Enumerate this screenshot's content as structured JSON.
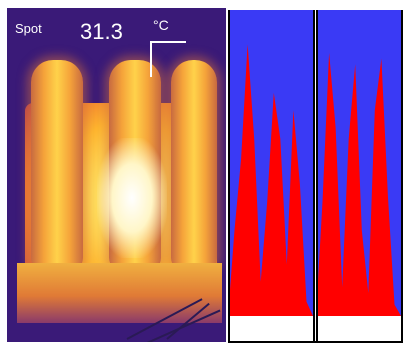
{
  "overlay": {
    "spot_label": "Spot",
    "spot_value": "31.3",
    "unit": "°C"
  },
  "colors": {
    "strip_background": "#3a3af5",
    "strip_fill": "#ff0000",
    "thermal_background": "#3a1a78"
  },
  "icons": {
    "measurement_marker": "crosshair-bracket-icon"
  },
  "profiles": [
    {
      "id": "left",
      "levels": [
        0.0,
        0.3,
        0.55,
        0.95,
        0.62,
        0.12,
        0.4,
        0.78,
        0.62,
        0.18,
        0.72,
        0.46,
        0.05,
        0.0
      ]
    },
    {
      "id": "right",
      "levels": [
        0.0,
        0.4,
        0.92,
        0.66,
        0.1,
        0.62,
        0.88,
        0.3,
        0.08,
        0.72,
        0.9,
        0.42,
        0.04,
        0.0
      ]
    }
  ]
}
